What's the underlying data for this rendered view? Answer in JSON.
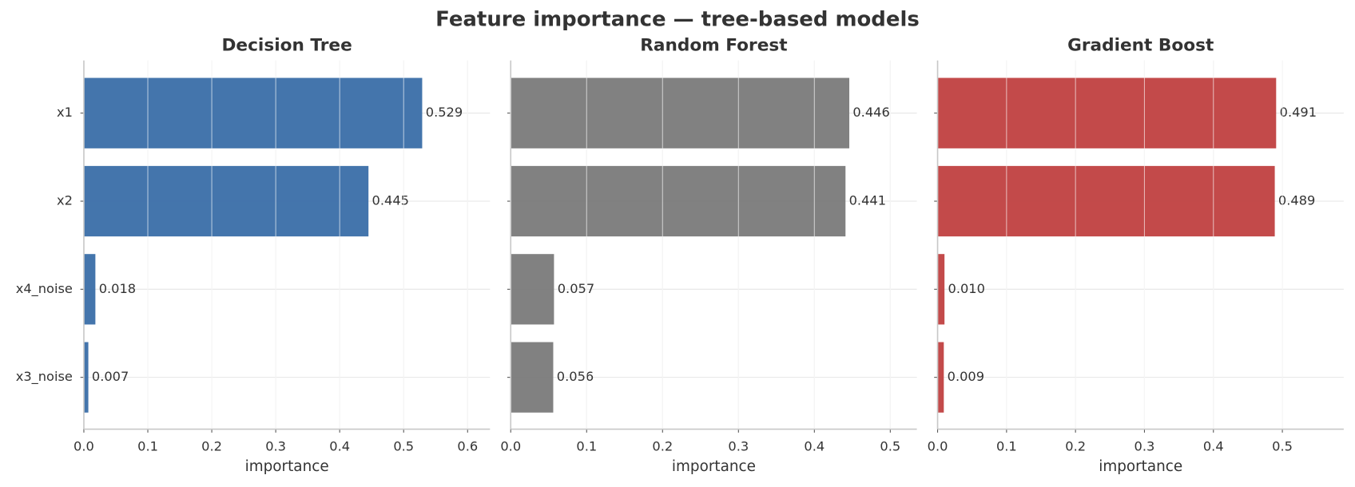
{
  "title": "Feature importance — tree-based models",
  "chart_data": [
    {
      "type": "barh",
      "title": "Decision Tree",
      "xlabel": "importance",
      "color": "#3a6ea8",
      "categories": [
        "x1",
        "x2",
        "x4_noise",
        "x3_noise"
      ],
      "values": [
        0.529,
        0.445,
        0.018,
        0.007
      ],
      "xlim": [
        0,
        0.635
      ],
      "xticks": [
        {
          "value": 0,
          "label": "0.0"
        },
        0.1,
        0.2,
        0.3,
        0.4,
        0.5,
        0.6
      ],
      "grid": true
    },
    {
      "type": "barh",
      "title": "Random Forest",
      "xlabel": "importance",
      "color": "#7a7a7a",
      "values": [
        0.446,
        0.441,
        0.057,
        0.056
      ],
      "xlim": [
        0,
        0.535
      ],
      "xticks": [
        {
          "value": 0,
          "label": "0.0"
        },
        0.1,
        0.2,
        0.3,
        0.4,
        0.5
      ],
      "grid": true
    },
    {
      "type": "barh",
      "title": "Gradient Boost",
      "xlabel": "importance",
      "color": "#c04040",
      "values": [
        0.491,
        0.489,
        0.01,
        0.009
      ],
      "value_labels": [
        "0.491",
        "0.489",
        "0.010",
        "0.009"
      ],
      "xlim": [
        0,
        0.589
      ],
      "xticks": [
        {
          "value": 0,
          "label": "0.0"
        },
        0.1,
        0.2,
        0.3,
        0.4,
        0.5
      ],
      "grid": true
    }
  ]
}
